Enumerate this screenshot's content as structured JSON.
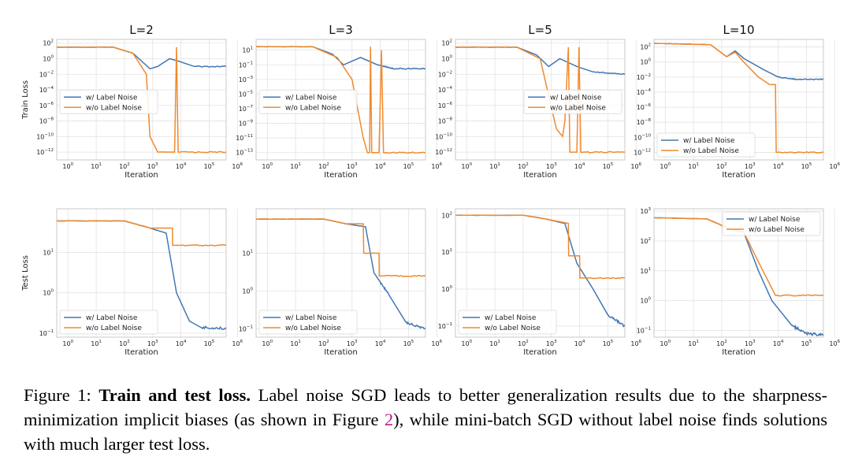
{
  "colors": {
    "with_noise": "#4477b4",
    "without_noise": "#f08a2c",
    "grid": "#e3e3e3",
    "spine": "#bdbdbd",
    "text": "#222222",
    "caption_ref": "#c71585"
  },
  "chart_data": [
    {
      "type": "line",
      "panel": "train L=2",
      "title": "L=2",
      "xlabel": "Iteration",
      "ylabel": "Train Loss",
      "xscale": "log",
      "yscale": "log",
      "xlim": [
        0.4,
        400000
      ],
      "ylim": [
        1e-13,
        300
      ],
      "xticks": [
        "10^0",
        "10^1",
        "10^2",
        "10^3",
        "10^4",
        "10^5",
        "10^6"
      ],
      "yticks": [
        "10^2",
        "10^0",
        "10^-2",
        "10^-4",
        "10^-6",
        "10^-8",
        "10^-10",
        "10^-12"
      ],
      "legend_loc": "center-left",
      "grid": true,
      "series": [
        {
          "name": "w/  Label Noise",
          "points": [
            [
              0.4,
              30
            ],
            [
              40,
              30
            ],
            [
              200,
              5
            ],
            [
              800,
              0.05
            ],
            [
              1500,
              0.1
            ],
            [
              4000,
              1
            ],
            [
              8000,
              0.5
            ],
            [
              30000,
              0.1
            ],
            [
              400000,
              0.1
            ]
          ]
        },
        {
          "name": "w/o Label Noise",
          "points": [
            [
              0.4,
              30
            ],
            [
              40,
              30
            ],
            [
              200,
              5
            ],
            [
              600,
              0.01
            ],
            [
              800,
              1e-10
            ],
            [
              1500,
              1e-12
            ],
            [
              6000,
              1e-12
            ],
            [
              7000,
              30
            ],
            [
              8000,
              1e-12
            ],
            [
              400000,
              1e-12
            ]
          ]
        }
      ]
    },
    {
      "type": "line",
      "panel": "train L=3",
      "title": "L=3",
      "xlabel": "Iteration",
      "ylabel": "",
      "xscale": "log",
      "yscale": "log",
      "xlim": [
        0.4,
        400000
      ],
      "ylim": [
        1e-14,
        300
      ],
      "xticks": [
        "10^0",
        "10^1",
        "10^2",
        "10^3",
        "10^4",
        "10^5",
        "10^6"
      ],
      "yticks": [
        "10^1",
        "10^-1",
        "10^-3",
        "10^-5",
        "10^-7",
        "10^-9",
        "10^-11",
        "10^-13"
      ],
      "legend_loc": "center-left",
      "grid": true,
      "series": [
        {
          "name": "w/  Label Noise",
          "points": [
            [
              0.4,
              30
            ],
            [
              40,
              30
            ],
            [
              200,
              3
            ],
            [
              500,
              0.1
            ],
            [
              2000,
              1
            ],
            [
              8000,
              0.1
            ],
            [
              30000,
              0.03
            ],
            [
              400000,
              0.03
            ]
          ]
        },
        {
          "name": "w/o Label Noise",
          "points": [
            [
              0.4,
              30
            ],
            [
              40,
              30
            ],
            [
              300,
              1
            ],
            [
              1000,
              0.001
            ],
            [
              2500,
              1e-11
            ],
            [
              3500,
              1e-13
            ],
            [
              4200,
              1e-13
            ],
            [
              4500,
              30
            ],
            [
              5000,
              1e-13
            ],
            [
              9000,
              1e-13
            ],
            [
              11000,
              10
            ],
            [
              13000,
              1e-13
            ],
            [
              400000,
              1e-13
            ]
          ]
        }
      ]
    },
    {
      "type": "line",
      "panel": "train L=5",
      "title": "L=5",
      "xlabel": "Iteration",
      "ylabel": "",
      "xscale": "log",
      "yscale": "log",
      "xlim": [
        0.4,
        400000
      ],
      "ylim": [
        1e-13,
        300
      ],
      "xticks": [
        "10^0",
        "10^1",
        "10^2",
        "10^3",
        "10^4",
        "10^5",
        "10^6"
      ],
      "yticks": [
        "10^2",
        "10^0",
        "10^-2",
        "10^-4",
        "10^-6",
        "10^-8",
        "10^-10",
        "10^-12"
      ],
      "legend_loc": "center-right",
      "grid": true,
      "series": [
        {
          "name": "w/  Label Noise",
          "points": [
            [
              0.4,
              30
            ],
            [
              60,
              30
            ],
            [
              300,
              3
            ],
            [
              800,
              0.1
            ],
            [
              2000,
              1
            ],
            [
              8000,
              0.1
            ],
            [
              30000,
              0.02
            ],
            [
              400000,
              0.01
            ]
          ]
        },
        {
          "name": "w/o Label Noise",
          "points": [
            [
              0.4,
              30
            ],
            [
              60,
              30
            ],
            [
              400,
              1
            ],
            [
              1500,
              1e-09
            ],
            [
              2500,
              1e-10
            ],
            [
              3000,
              1e-08
            ],
            [
              4000,
              30
            ],
            [
              4500,
              1e-12
            ],
            [
              8000,
              1e-12
            ],
            [
              9500,
              30
            ],
            [
              11000,
              1e-12
            ],
            [
              400000,
              1e-12
            ]
          ]
        }
      ]
    },
    {
      "type": "line",
      "panel": "train L=10",
      "title": "L=10",
      "xlabel": "Iteration",
      "ylabel": "",
      "xscale": "log",
      "yscale": "log",
      "xlim": [
        0.4,
        400000
      ],
      "ylim": [
        1e-13,
        1000
      ],
      "xticks": [
        "10^0",
        "10^1",
        "10^2",
        "10^3",
        "10^4",
        "10^5",
        "10^6"
      ],
      "yticks": [
        "10^2",
        "10^0",
        "10^-2",
        "10^-4",
        "10^-6",
        "10^-8",
        "10^-10",
        "10^-12"
      ],
      "legend_loc": "lower-left",
      "grid": true,
      "series": [
        {
          "name": "w/  Label Noise",
          "points": [
            [
              0.4,
              300
            ],
            [
              40,
              200
            ],
            [
              150,
              5
            ],
            [
              300,
              30
            ],
            [
              600,
              3
            ],
            [
              3000,
              0.1
            ],
            [
              10000,
              0.01
            ],
            [
              50000,
              0.005
            ],
            [
              400000,
              0.005
            ]
          ]
        },
        {
          "name": "w/o Label Noise",
          "points": [
            [
              0.4,
              300
            ],
            [
              40,
              200
            ],
            [
              150,
              5
            ],
            [
              300,
              20
            ],
            [
              600,
              1
            ],
            [
              2000,
              0.01
            ],
            [
              5000,
              0.001
            ],
            [
              8000,
              0.001
            ],
            [
              8500,
              1e-12
            ],
            [
              400000,
              1e-12
            ]
          ]
        }
      ]
    },
    {
      "type": "line",
      "panel": "test L=2",
      "title": "",
      "xlabel": "Iteration",
      "ylabel": "Test Loss",
      "xscale": "log",
      "yscale": "log",
      "xlim": [
        0.4,
        400000
      ],
      "ylim": [
        0.08,
        120
      ],
      "xticks": [
        "10^0",
        "10^1",
        "10^2",
        "10^3",
        "10^4",
        "10^5",
        "10^6"
      ],
      "yticks": [
        "10^1",
        "10^0",
        "10^-1"
      ],
      "legend_loc": "lower-left",
      "grid": true,
      "series": [
        {
          "name": "w/  Label Noise",
          "points": [
            [
              0.4,
              60
            ],
            [
              100,
              60
            ],
            [
              800,
              40
            ],
            [
              3000,
              30
            ],
            [
              7000,
              1
            ],
            [
              20000,
              0.2
            ],
            [
              50000,
              0.14
            ],
            [
              400000,
              0.13
            ]
          ]
        },
        {
          "name": "w/o Label Noise",
          "points": [
            [
              0.4,
              60
            ],
            [
              100,
              60
            ],
            [
              800,
              40
            ],
            [
              5000,
              40
            ],
            [
              5100,
              15
            ],
            [
              400000,
              15
            ]
          ]
        }
      ]
    },
    {
      "type": "line",
      "panel": "test L=3",
      "title": "",
      "xlabel": "Iteration",
      "ylabel": "",
      "xscale": "log",
      "yscale": "log",
      "xlim": [
        0.4,
        400000
      ],
      "ylim": [
        0.06,
        150
      ],
      "xticks": [
        "10^0",
        "10^1",
        "10^2",
        "10^3",
        "10^4",
        "10^5",
        "10^6"
      ],
      "yticks": [
        "10^1",
        "10^0",
        "10^-1"
      ],
      "legend_loc": "lower-left",
      "grid": true,
      "series": [
        {
          "name": "w/  Label Noise",
          "points": [
            [
              0.4,
              80
            ],
            [
              100,
              80
            ],
            [
              600,
              60
            ],
            [
              3000,
              50
            ],
            [
              6000,
              3
            ],
            [
              20000,
              0.8
            ],
            [
              80000,
              0.15
            ],
            [
              400000,
              0.1
            ]
          ]
        },
        {
          "name": "w/o Label Noise",
          "points": [
            [
              0.4,
              80
            ],
            [
              100,
              80
            ],
            [
              600,
              60
            ],
            [
              2500,
              60
            ],
            [
              2600,
              10
            ],
            [
              9000,
              10
            ],
            [
              9200,
              2.5
            ],
            [
              400000,
              2.5
            ]
          ]
        }
      ]
    },
    {
      "type": "line",
      "panel": "test L=5",
      "title": "",
      "xlabel": "Iteration",
      "ylabel": "",
      "xscale": "log",
      "yscale": "log",
      "xlim": [
        0.4,
        400000
      ],
      "ylim": [
        0.05,
        150
      ],
      "xticks": [
        "10^0",
        "10^1",
        "10^2",
        "10^3",
        "10^4",
        "10^5",
        "10^6"
      ],
      "yticks": [
        "10^2",
        "10^1",
        "10^0",
        "10^-1"
      ],
      "legend_loc": "lower-left",
      "grid": true,
      "series": [
        {
          "name": "w/  Label Noise",
          "points": [
            [
              0.4,
              100
            ],
            [
              100,
              100
            ],
            [
              600,
              80
            ],
            [
              3000,
              60
            ],
            [
              8000,
              5
            ],
            [
              30000,
              1
            ],
            [
              100000,
              0.2
            ],
            [
              400000,
              0.1
            ]
          ]
        },
        {
          "name": "w/o Label Noise",
          "points": [
            [
              0.4,
              100
            ],
            [
              100,
              100
            ],
            [
              600,
              80
            ],
            [
              4000,
              60
            ],
            [
              4100,
              8
            ],
            [
              10000,
              8
            ],
            [
              10200,
              2
            ],
            [
              400000,
              2
            ]
          ]
        }
      ]
    },
    {
      "type": "line",
      "panel": "test L=10",
      "title": "",
      "xlabel": "Iteration",
      "ylabel": "",
      "xscale": "log",
      "yscale": "log",
      "xlim": [
        0.4,
        400000
      ],
      "ylim": [
        0.06,
        1200
      ],
      "xticks": [
        "10^0",
        "10^1",
        "10^2",
        "10^3",
        "10^4",
        "10^5",
        "10^6"
      ],
      "yticks": [
        "10^3",
        "10^2",
        "10^1",
        "10^0",
        "10^-1"
      ],
      "legend_loc": "upper-right",
      "grid": true,
      "series": [
        {
          "name": "w/  Label Noise",
          "points": [
            [
              0.4,
              600
            ],
            [
              30,
              550
            ],
            [
              200,
              250
            ],
            [
              600,
              200
            ],
            [
              2000,
              10
            ],
            [
              6000,
              1
            ],
            [
              30000,
              0.15
            ],
            [
              100000,
              0.08
            ],
            [
              400000,
              0.07
            ]
          ]
        },
        {
          "name": "w/o Label Noise",
          "points": [
            [
              0.4,
              600
            ],
            [
              30,
              550
            ],
            [
              200,
              250
            ],
            [
              600,
              200
            ],
            [
              2000,
              20
            ],
            [
              8000,
              1.5
            ],
            [
              400000,
              1.5
            ]
          ]
        }
      ]
    }
  ],
  "caption": {
    "label": "Figure 1:",
    "bold": "Train and test loss.",
    "text1": "Label noise SGD leads to better generalization results due to the sharpness-minimization implicit biases (as shown in Figure",
    "ref": "2",
    "text2": "), while mini-batch SGD without label noise finds solutions with much larger test loss."
  }
}
